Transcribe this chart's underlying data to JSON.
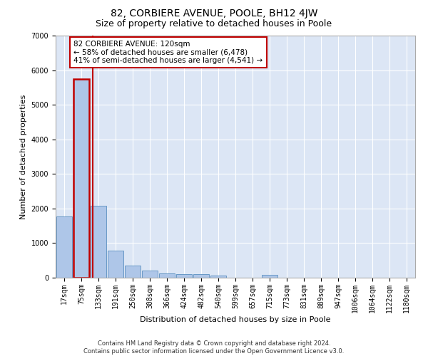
{
  "title": "82, CORBIERE AVENUE, POOLE, BH12 4JW",
  "subtitle": "Size of property relative to detached houses in Poole",
  "xlabel": "Distribution of detached houses by size in Poole",
  "ylabel": "Number of detached properties",
  "footer_line1": "Contains HM Land Registry data © Crown copyright and database right 2024.",
  "footer_line2": "Contains public sector information licensed under the Open Government Licence v3.0.",
  "bar_labels": [
    "17sqm",
    "75sqm",
    "133sqm",
    "191sqm",
    "250sqm",
    "308sqm",
    "366sqm",
    "424sqm",
    "482sqm",
    "540sqm",
    "599sqm",
    "657sqm",
    "715sqm",
    "773sqm",
    "831sqm",
    "889sqm",
    "947sqm",
    "1006sqm",
    "1064sqm",
    "1122sqm",
    "1180sqm"
  ],
  "bar_values": [
    1780,
    5750,
    2080,
    790,
    340,
    200,
    120,
    110,
    95,
    70,
    0,
    0,
    90,
    0,
    0,
    0,
    0,
    0,
    0,
    0,
    0
  ],
  "bar_color": "#aec6e8",
  "bar_edge_color": "#5a8fc0",
  "highlight_bar_index": 1,
  "highlight_color": "#c00000",
  "vline_x": 1.655,
  "annotation_text": "82 CORBIERE AVENUE: 120sqm\n← 58% of detached houses are smaller (6,478)\n41% of semi-detached houses are larger (4,541) →",
  "annotation_box_color": "#ffffff",
  "annotation_box_edge_color": "#c00000",
  "ylim": [
    0,
    7000
  ],
  "yticks": [
    0,
    1000,
    2000,
    3000,
    4000,
    5000,
    6000,
    7000
  ],
  "background_color": "#dce6f5",
  "grid_color": "#ffffff",
  "title_fontsize": 10,
  "subtitle_fontsize": 9,
  "axis_label_fontsize": 8,
  "tick_fontsize": 7
}
